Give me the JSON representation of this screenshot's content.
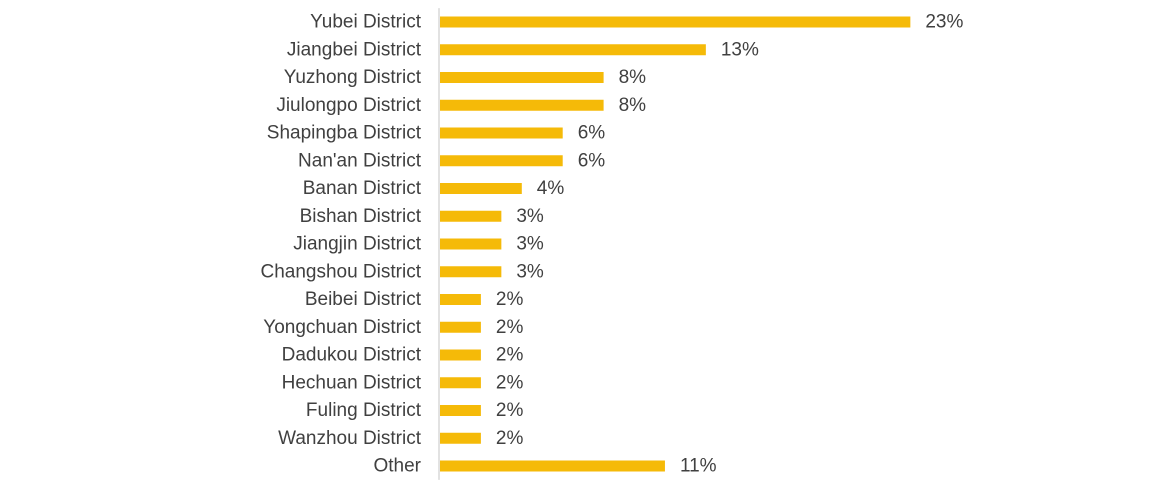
{
  "chart_data": {
    "type": "bar",
    "orientation": "horizontal",
    "categories": [
      "Yubei District",
      "Jiangbei District",
      "Yuzhong District",
      "Jiulongpo District",
      "Shapingba District",
      "Nan'an District",
      "Banan District",
      "Bishan District",
      "Jiangjin District",
      "Changshou District",
      "Beibei District",
      "Yongchuan District",
      "Dadukou District",
      "Hechuan District",
      "Fuling District",
      "Wanzhou District",
      "Other"
    ],
    "values": [
      23,
      13,
      8,
      8,
      6,
      6,
      4,
      3,
      3,
      3,
      2,
      2,
      2,
      2,
      2,
      2,
      11
    ],
    "value_labels": [
      "23%",
      "13%",
      "8%",
      "8%",
      "6%",
      "6%",
      "4%",
      "3%",
      "3%",
      "3%",
      "2%",
      "2%",
      "2%",
      "2%",
      "2%",
      "2%",
      "11%"
    ],
    "unit": "%",
    "xlim": [
      0,
      25
    ],
    "grid": false,
    "legend": "none",
    "title": "",
    "xlabel": "",
    "ylabel": "",
    "bar_color": "#F5BA08",
    "axis_color": "#D9D9D9",
    "label_color": "#404040"
  }
}
